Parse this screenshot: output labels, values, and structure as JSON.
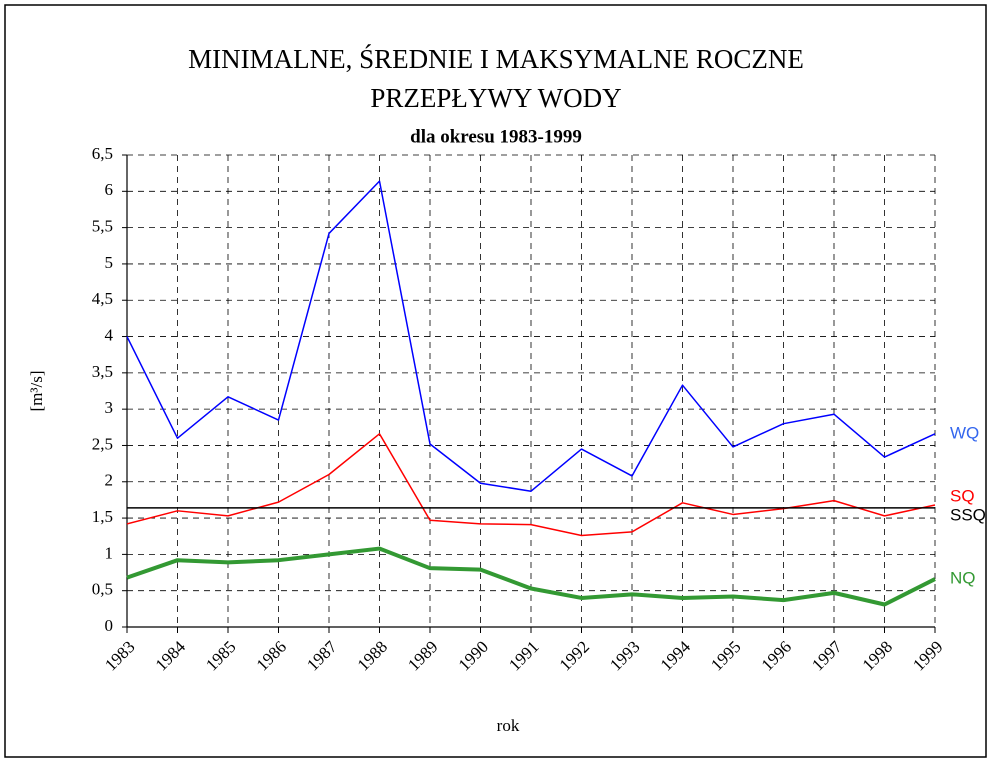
{
  "chart_data": {
    "type": "line",
    "title": [
      "MINIMALNE, ŚREDNIE I MAKSYMALNE ROCZNE",
      "PRZEPŁYWY WODY"
    ],
    "subtitle": "dla okresu 1983-1999",
    "x_label": "rok",
    "y_label": "[m³/s]",
    "categories": [
      "1983",
      "1984",
      "1985",
      "1986",
      "1987",
      "1988",
      "1989",
      "1990",
      "1991",
      "1992",
      "1993",
      "1994",
      "1995",
      "1996",
      "1997",
      "1998",
      "1999"
    ],
    "series": [
      {
        "name": "WQ",
        "color": "#0000ff",
        "label_color": "#3366ee",
        "width": 1.5,
        "values": [
          4.0,
          2.6,
          3.17,
          2.85,
          5.42,
          6.14,
          2.52,
          1.98,
          1.87,
          2.45,
          2.08,
          3.33,
          2.48,
          2.8,
          2.93,
          2.34,
          2.66
        ]
      },
      {
        "name": "SQ",
        "color": "#ff0000",
        "label_color": "#ff0000",
        "width": 1.5,
        "values": [
          1.42,
          1.6,
          1.53,
          1.72,
          2.1,
          2.66,
          1.47,
          1.42,
          1.41,
          1.26,
          1.31,
          1.71,
          1.55,
          1.63,
          1.74,
          1.53,
          1.68
        ]
      },
      {
        "name": "SSQ",
        "color": "#000000",
        "label_color": "#000000",
        "width": 1.5,
        "values": [
          1.64,
          1.64,
          1.64,
          1.64,
          1.64,
          1.64,
          1.64,
          1.64,
          1.64,
          1.64,
          1.64,
          1.64,
          1.64,
          1.64,
          1.64,
          1.64,
          1.64
        ]
      },
      {
        "name": "NQ",
        "color": "#339933",
        "label_color": "#339933",
        "width": 4,
        "values": [
          0.68,
          0.92,
          0.89,
          0.92,
          1.0,
          1.08,
          0.81,
          0.79,
          0.53,
          0.4,
          0.45,
          0.4,
          0.42,
          0.37,
          0.47,
          0.31,
          0.66
        ]
      }
    ],
    "ylim": [
      0,
      6.5
    ],
    "yticks": [
      0,
      {
        "value": 0.5,
        "label": "0,5"
      },
      1,
      {
        "value": 1.5,
        "label": "1,5"
      },
      2,
      {
        "value": 2.5,
        "label": "2,5"
      },
      3,
      {
        "value": 3.5,
        "label": "3,5"
      },
      4,
      {
        "value": 4.5,
        "label": "4,5"
      },
      5,
      {
        "value": 5.5,
        "label": "5,5"
      },
      6,
      {
        "value": 6.5,
        "label": "6,5"
      }
    ],
    "grid": true
  }
}
